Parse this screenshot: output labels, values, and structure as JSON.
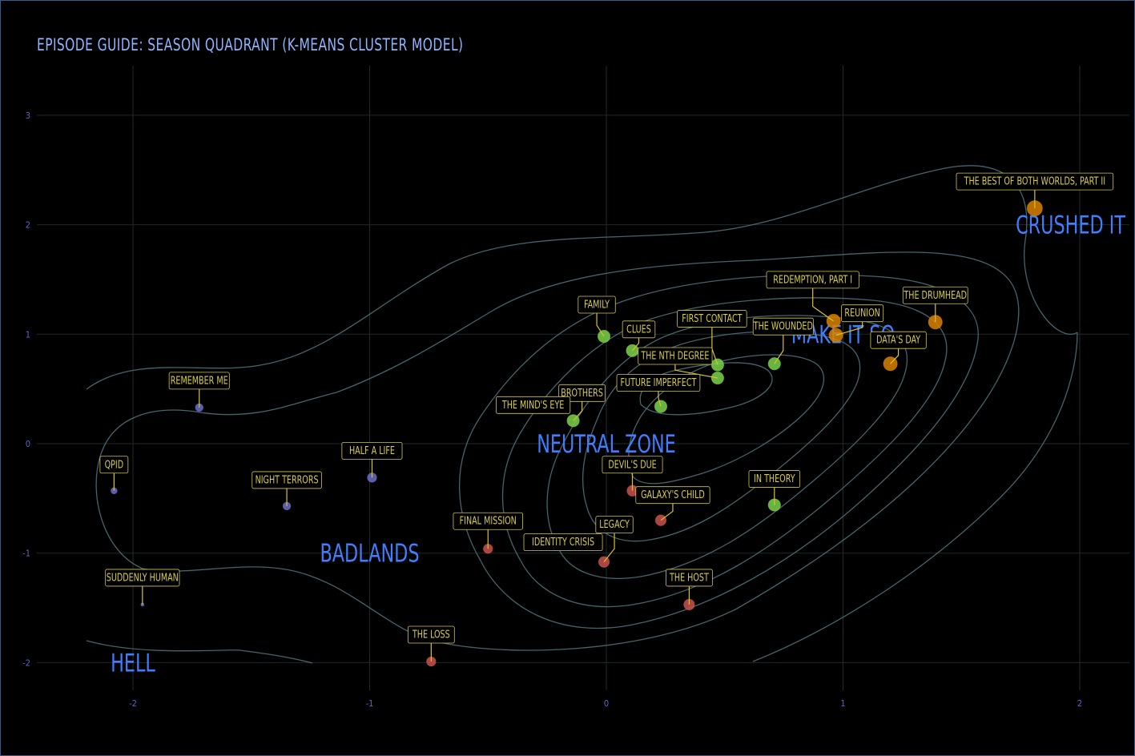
{
  "title": "EPISODE GUIDE: SEASON QUADRANT (K-MEANS CLUSTER MODEL)",
  "chart_data": {
    "type": "scatter",
    "title": "EPISODE GUIDE: SEASON QUADRANT (K-MEANS CLUSTER MODEL)",
    "xlim": [
      -2.3,
      2.3
    ],
    "ylim": [
      -2.3,
      3.4
    ],
    "x_ticks": [
      -2,
      -1,
      0,
      1,
      2
    ],
    "y_ticks": [
      -2,
      -1,
      0,
      1,
      2,
      3
    ],
    "grid": true,
    "density_contours": true,
    "cluster_colors": {
      "hell": "#6a6fc8",
      "badlands": "#c9524e",
      "neutral_zone": "#7bd24a",
      "make_it_so": "#7bd24a",
      "crushed_it": "#d98300"
    },
    "zones": [
      {
        "label": "CRUSHED IT",
        "x": 2.0,
        "y": 2.0
      },
      {
        "label": "MAKE IT SO",
        "x": 1.0,
        "y": 1.0
      },
      {
        "label": "NEUTRAL ZONE",
        "x": 0.0,
        "y": 0.0
      },
      {
        "label": "BADLANDS",
        "x": -1.0,
        "y": -1.0
      },
      {
        "label": "HELL",
        "x": -2.0,
        "y": -2.0
      }
    ],
    "points": [
      {
        "label": "THE BEST OF BOTH WORLDS, PART II",
        "x": 1.81,
        "y": 2.15,
        "cluster": "crushed_it",
        "size": 10
      },
      {
        "label": "THE DRUMHEAD",
        "x": 1.39,
        "y": 1.11,
        "cluster": "crushed_it",
        "size": 9
      },
      {
        "label": "REDEMPTION, PART I",
        "x": 0.96,
        "y": 1.12,
        "cluster": "crushed_it",
        "size": 9
      },
      {
        "label": "REUNION",
        "x": 0.97,
        "y": 0.99,
        "cluster": "crushed_it",
        "size": 9
      },
      {
        "label": "DATA'S DAY",
        "x": 1.2,
        "y": 0.73,
        "cluster": "crushed_it",
        "size": 9
      },
      {
        "label": "FAMILY",
        "x": -0.01,
        "y": 0.98,
        "cluster": "make_it_so",
        "size": 8
      },
      {
        "label": "CLUES",
        "x": 0.11,
        "y": 0.85,
        "cluster": "make_it_so",
        "size": 8
      },
      {
        "label": "FIRST CONTACT",
        "x": 0.47,
        "y": 0.72,
        "cluster": "make_it_so",
        "size": 8
      },
      {
        "label": "THE NTH DEGREE",
        "x": 0.47,
        "y": 0.6,
        "cluster": "make_it_so",
        "size": 8
      },
      {
        "label": "THE WOUNDED",
        "x": 0.71,
        "y": 0.73,
        "cluster": "make_it_so",
        "size": 8
      },
      {
        "label": "FUTURE IMPERFECT",
        "x": 0.23,
        "y": 0.34,
        "cluster": "make_it_so",
        "size": 8
      },
      {
        "label": "BROTHERS",
        "x": -0.14,
        "y": 0.21,
        "cluster": "make_it_so",
        "size": 8
      },
      {
        "label": "IN THEORY",
        "x": 0.71,
        "y": -0.56,
        "cluster": "make_it_so",
        "size": 8
      },
      {
        "label": "DEVIL'S DUE",
        "x": 0.11,
        "y": -0.43,
        "cluster": "badlands",
        "size": 7
      },
      {
        "label": "GALAXY'S CHILD",
        "x": 0.23,
        "y": -0.7,
        "cluster": "badlands",
        "size": 7
      },
      {
        "label": "LEGACY",
        "x": -0.01,
        "y": -1.08,
        "cluster": "badlands",
        "size": 7
      },
      {
        "label": "FINAL MISSION",
        "x": -0.5,
        "y": -0.96,
        "cluster": "badlands",
        "size": 6
      },
      {
        "label": "THE HOST",
        "x": 0.35,
        "y": -1.47,
        "cluster": "badlands",
        "size": 7
      },
      {
        "label": "THE LOSS",
        "x": -0.74,
        "y": -1.99,
        "cluster": "badlands",
        "size": 6
      },
      {
        "label": "REMEMBER ME",
        "x": -1.72,
        "y": 0.33,
        "cluster": "hell",
        "size": 5
      },
      {
        "label": "HALF A LIFE",
        "x": -0.99,
        "y": -0.31,
        "cluster": "hell",
        "size": 6
      },
      {
        "label": "NIGHT TERRORS",
        "x": -1.35,
        "y": -0.57,
        "cluster": "hell",
        "size": 5
      },
      {
        "label": "QPID",
        "x": -2.08,
        "y": -0.43,
        "cluster": "hell",
        "size": 4
      },
      {
        "label": "SUDDENLY HUMAN",
        "x": -1.96,
        "y": -1.47,
        "cluster": "hell",
        "size": 2
      }
    ],
    "extra_labels": [
      {
        "label": "THE MIND'S EYE",
        "for_point": "BROTHERS"
      },
      {
        "label": "IDENTITY CRISIS",
        "for_point": "LEGACY"
      }
    ]
  }
}
